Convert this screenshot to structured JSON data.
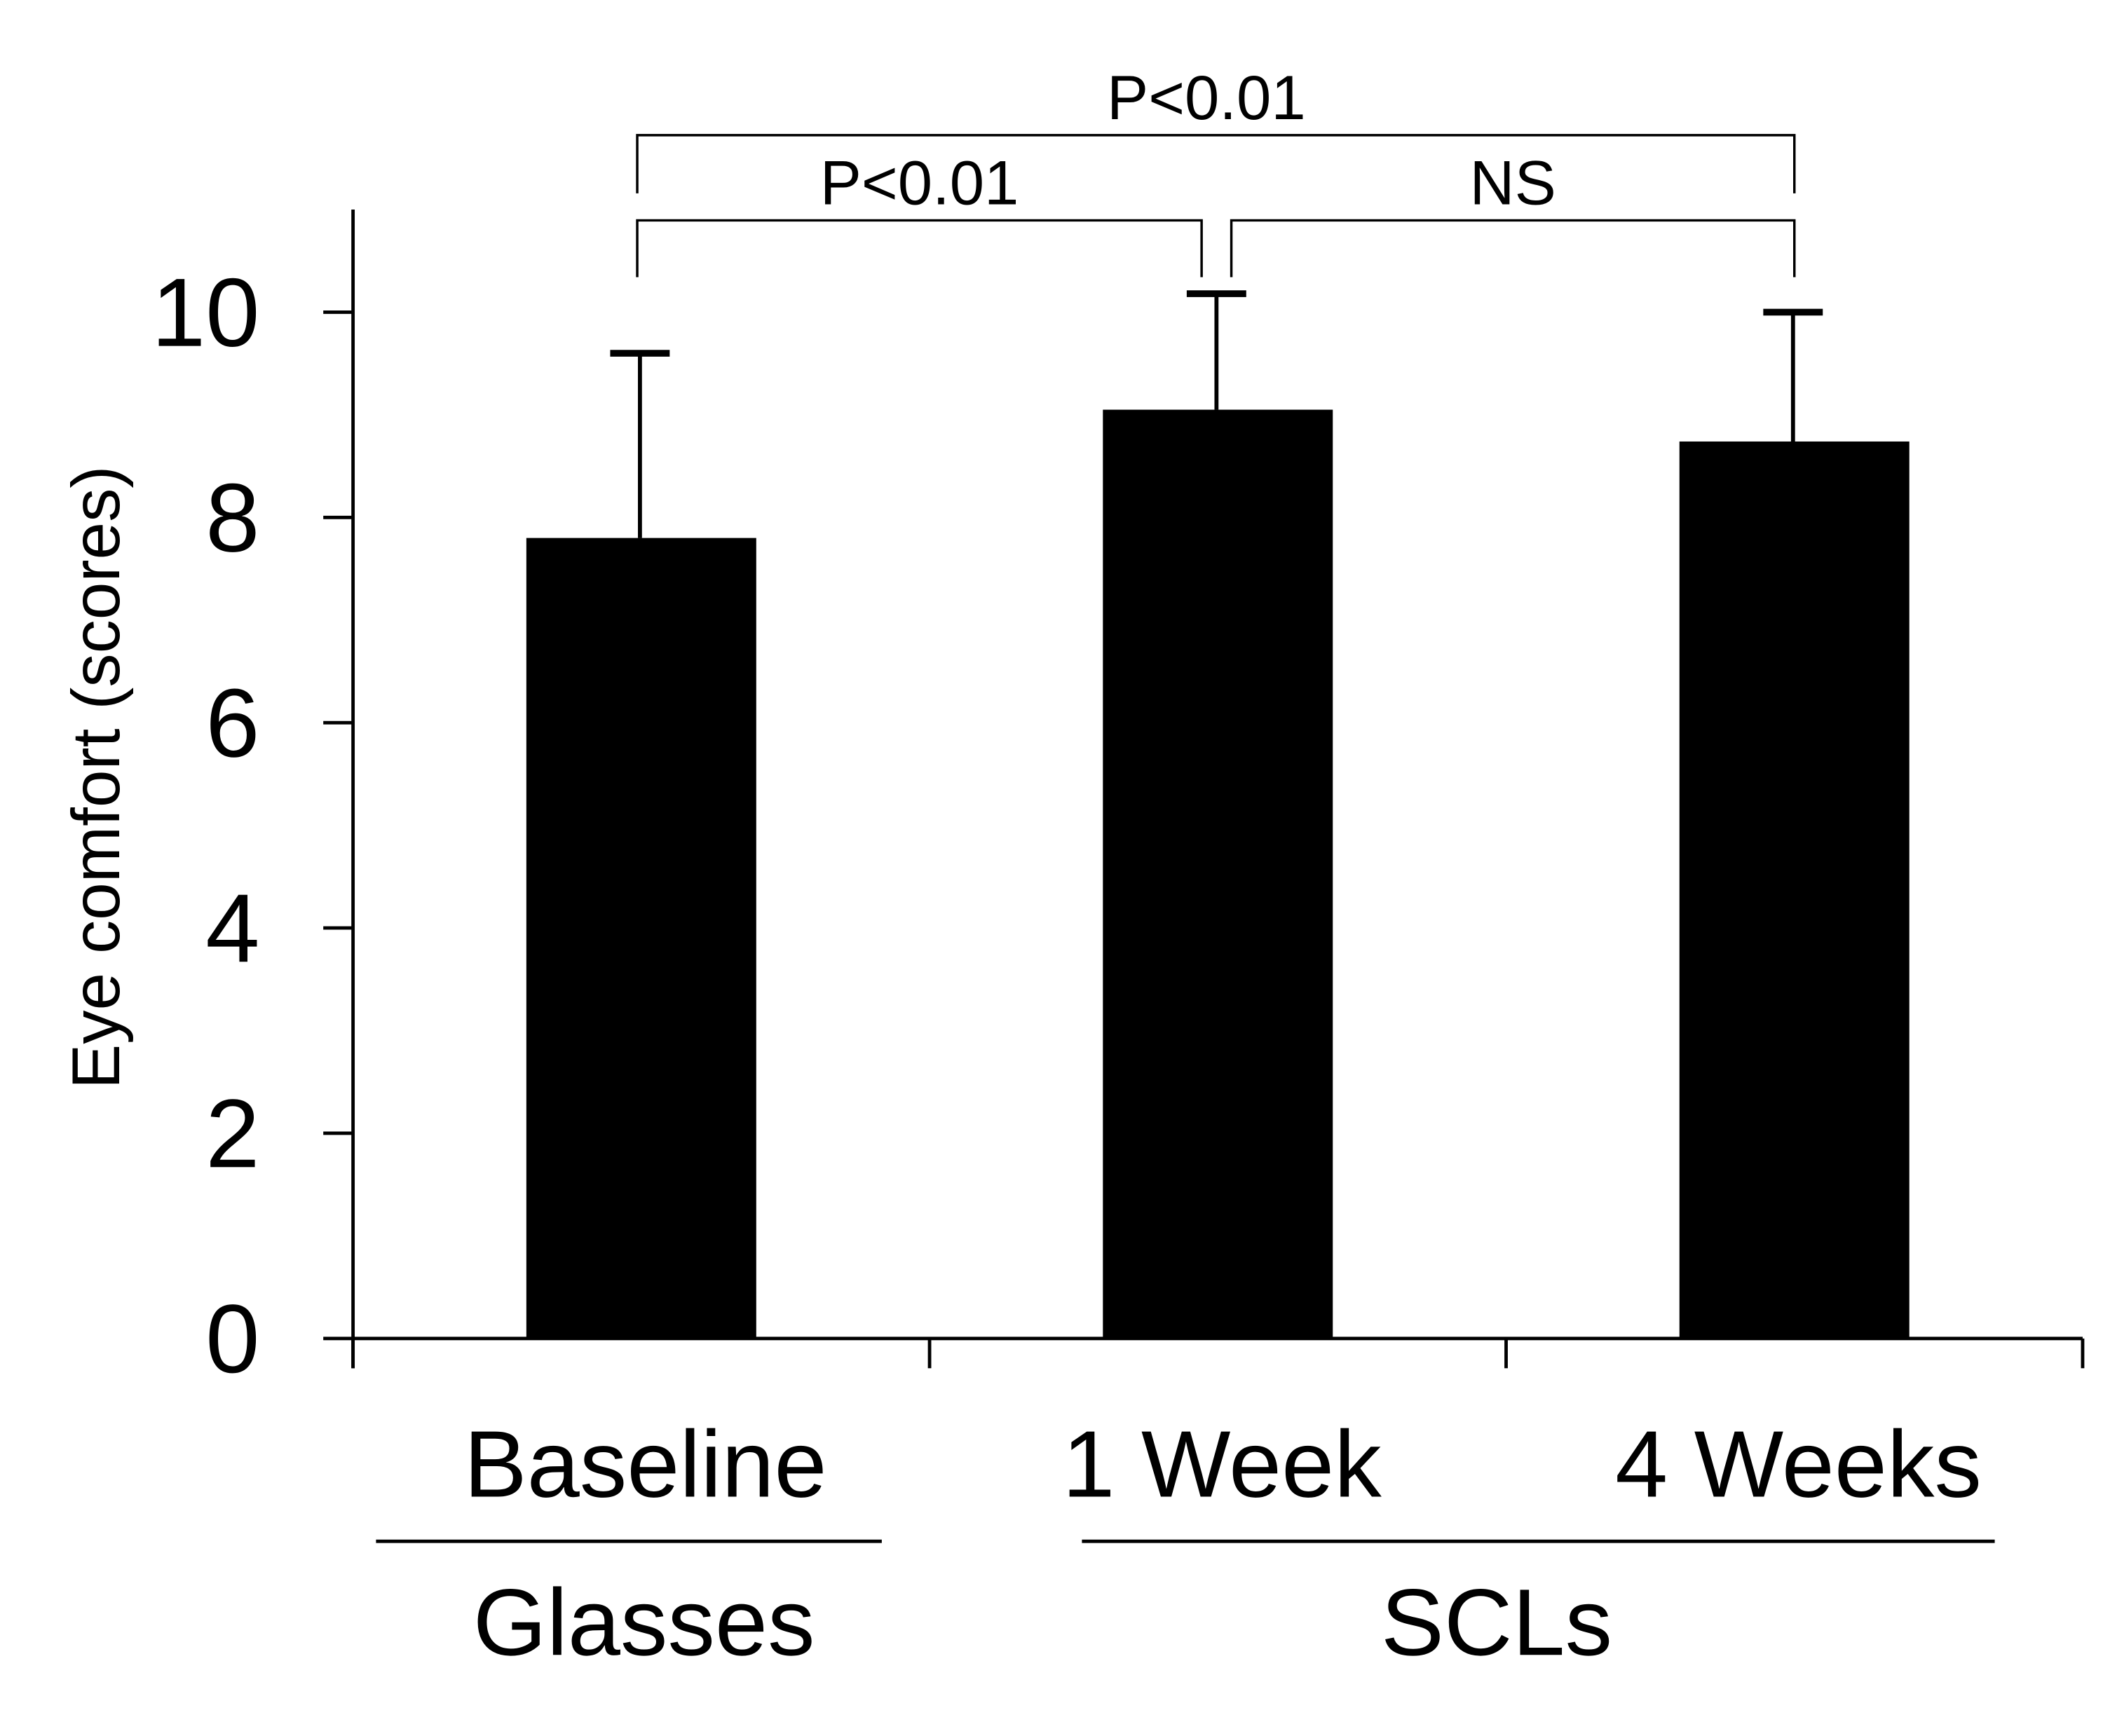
{
  "chart_data": {
    "type": "bar",
    "y_label": "Eye comfort (scores)",
    "categories": [
      "Baseline",
      "1 Week",
      "4 Weeks"
    ],
    "values": [
      7.8,
      9.05,
      8.74
    ],
    "errors": [
      1.8,
      1.13,
      1.26
    ],
    "color": "#000000",
    "ylim": [
      0,
      11
    ],
    "yticks": [
      0,
      2,
      4,
      6,
      8,
      10
    ],
    "groups": [
      {
        "label": "Glasses",
        "span": [
          0,
          0
        ]
      },
      {
        "label": "SCLs",
        "span": [
          1,
          2
        ]
      }
    ],
    "comparisons": [
      {
        "from": 0,
        "to": 2,
        "label": "P<0.01"
      },
      {
        "from": 0,
        "to": 1,
        "label": "P<0.01"
      },
      {
        "from": 1,
        "to": 2,
        "label": "NS"
      }
    ]
  }
}
